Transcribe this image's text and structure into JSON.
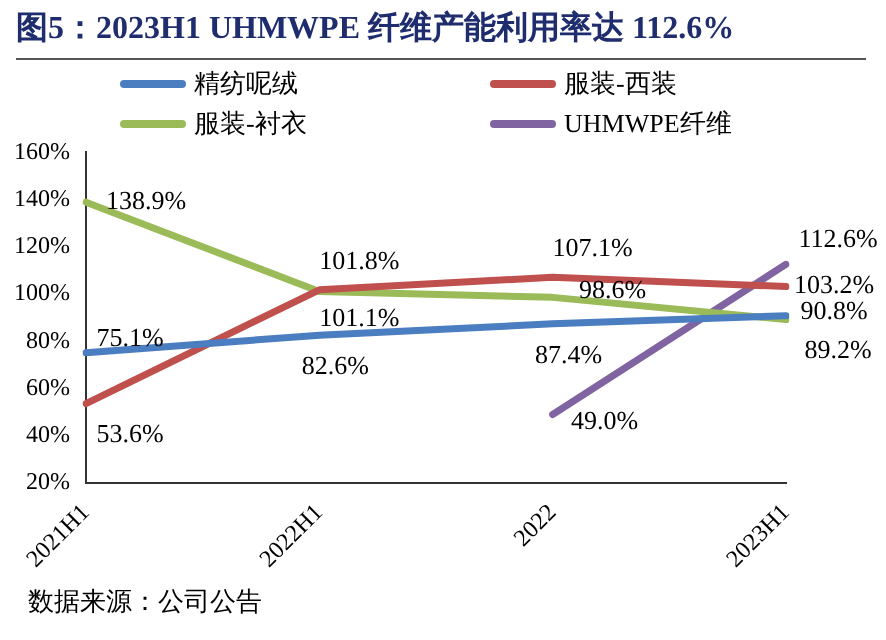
{
  "chart_data": {
    "type": "line",
    "title": "图5：2023H1 UHMWPE 纤维产能利用率达 112.6%",
    "annotations": [
      "数据来源：公司公告"
    ],
    "categories": [
      "2021H1",
      "2022H1",
      "2022",
      "2023H1"
    ],
    "series": [
      {
        "name": "精纺呢绒",
        "color": "#4a7ec0",
        "values": [
          75.1,
          82.6,
          87.4,
          90.8
        ],
        "value_labels": [
          "75.1%",
          "82.6%",
          "87.4%",
          "90.8%"
        ]
      },
      {
        "name": "服装-西装",
        "color": "#c0504d",
        "values": [
          53.6,
          101.8,
          107.1,
          103.2
        ],
        "value_labels": [
          "53.6%",
          "101.8%",
          "107.1%",
          "103.2%"
        ]
      },
      {
        "name": "服装-衬衣",
        "color": "#9bbb59",
        "values": [
          138.9,
          101.1,
          98.6,
          89.2
        ],
        "value_labels": [
          "138.9%",
          "101.1%",
          "98.6%",
          "89.2%"
        ]
      },
      {
        "name": "UHMWPE纤维",
        "color": "#8064a2",
        "values": [
          null,
          null,
          49.0,
          112.6
        ],
        "value_labels": [
          null,
          null,
          "49.0%",
          "112.6%"
        ]
      }
    ],
    "ylim": [
      20,
      160
    ],
    "yticks": [
      {
        "value": 20,
        "label": "20%"
      },
      {
        "value": 40,
        "label": "40%"
      },
      {
        "value": 60,
        "label": "60%"
      },
      {
        "value": 80,
        "label": "80%"
      },
      {
        "value": 100,
        "label": "100%"
      },
      {
        "value": 120,
        "label": "120%"
      },
      {
        "value": 140,
        "label": "140%"
      },
      {
        "value": 160,
        "label": "160%"
      }
    ],
    "grid": false,
    "legend": "top",
    "marker": "none",
    "line_style": "solid"
  }
}
